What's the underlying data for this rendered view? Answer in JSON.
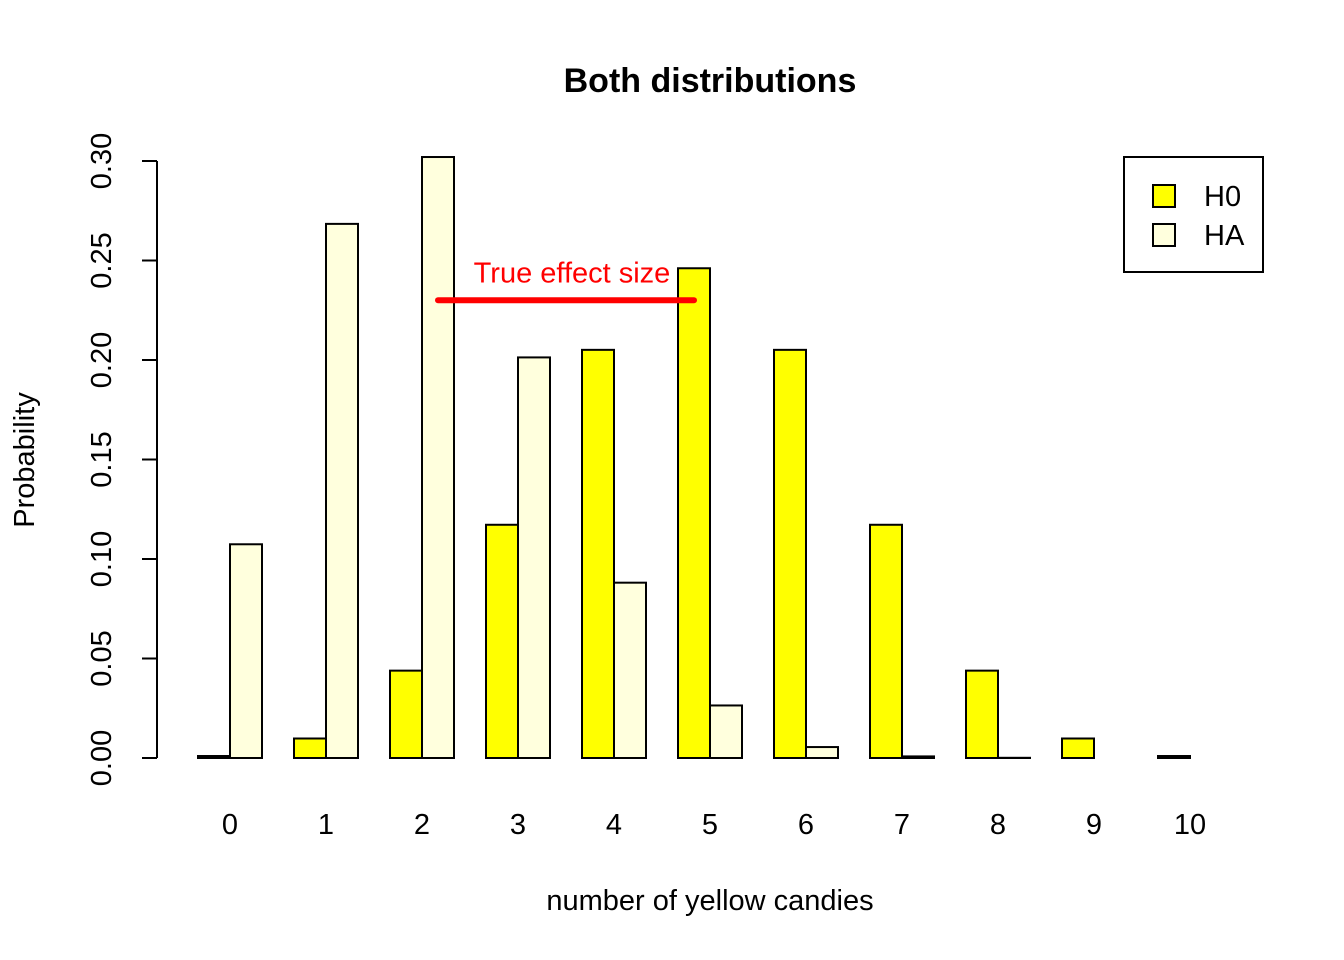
{
  "chart_data": {
    "type": "bar",
    "title": "Both distributions",
    "xlabel": "number of yellow candies",
    "ylabel": "Probability",
    "categories": [
      "0",
      "1",
      "2",
      "3",
      "4",
      "5",
      "6",
      "7",
      "8",
      "9",
      "10"
    ],
    "series": [
      {
        "name": "H0",
        "color": "#ffff00",
        "values": [
          0.001,
          0.0098,
          0.0439,
          0.1172,
          0.2051,
          0.2461,
          0.2051,
          0.1172,
          0.0439,
          0.0098,
          0.001
        ]
      },
      {
        "name": "HA",
        "color": "#ffffdd",
        "values": [
          0.1074,
          0.2684,
          0.302,
          0.2013,
          0.0881,
          0.0264,
          0.0055,
          0.0008,
          0.0001,
          0.0,
          0.0
        ]
      }
    ],
    "ylim": [
      0,
      0.3
    ],
    "yticks": [
      "0.00",
      "0.05",
      "0.10",
      "0.15",
      "0.20",
      "0.25",
      "0.30"
    ],
    "legend_position": "top-right",
    "grid": false,
    "annotation": {
      "text": "True effect size",
      "color": "#ff0000",
      "line_from": 2,
      "line_to": 5,
      "line_y": 0.23
    }
  }
}
